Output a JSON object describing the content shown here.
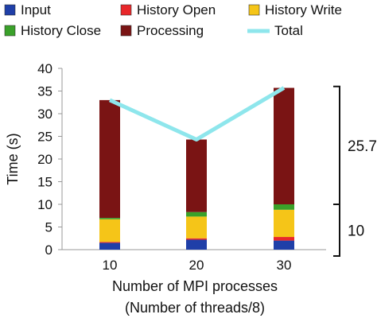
{
  "chart_data": {
    "type": "bar",
    "stacked": true,
    "categories": [
      "10",
      "20",
      "30"
    ],
    "series": [
      {
        "name": "Input",
        "color": "#1f3fa8",
        "values": [
          1.5,
          2.2,
          2.0
        ]
      },
      {
        "name": "History Open",
        "color": "#e8272a",
        "values": [
          0.2,
          0.3,
          0.8
        ]
      },
      {
        "name": "History Write",
        "color": "#f5c518",
        "values": [
          5.0,
          4.8,
          6.0
        ]
      },
      {
        "name": "History Close",
        "color": "#3aa12a",
        "values": [
          0.3,
          1.0,
          1.2
        ]
      },
      {
        "name": "Processing",
        "color": "#7a1414",
        "values": [
          26.0,
          16.0,
          25.7
        ]
      }
    ],
    "line_series": {
      "name": "Total",
      "color": "#8ee6ec",
      "values": [
        33.0,
        24.3,
        35.7
      ]
    },
    "ylabel": "Time (s)",
    "xlabel": "Number of MPI processes",
    "xlabel_sub": "(Number of threads/8)",
    "ylim": [
      0,
      40
    ],
    "yticks": [
      "0",
      "5",
      "10",
      "15",
      "20",
      "25",
      "30",
      "35",
      "40"
    ],
    "grid": false,
    "legend": "top",
    "annotations": [
      {
        "label": "25.7",
        "range": [
          10,
          36
        ]
      },
      {
        "label": "10",
        "range": [
          0,
          10
        ]
      }
    ]
  }
}
